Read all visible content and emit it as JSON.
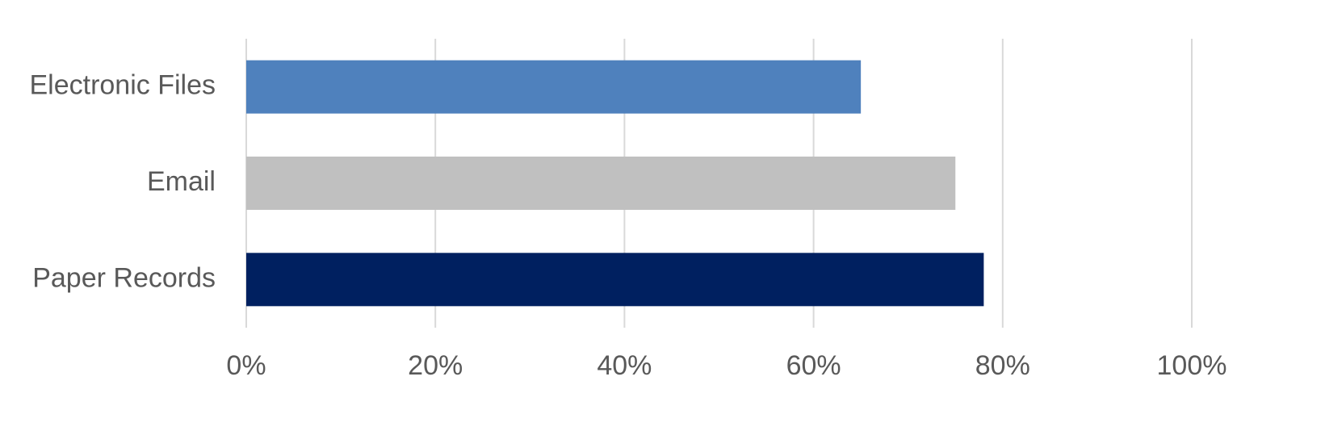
{
  "chart_data": {
    "type": "bar",
    "orientation": "horizontal",
    "categories": [
      "Electronic Files",
      "Email",
      "Paper Records"
    ],
    "values": [
      65,
      75,
      78
    ],
    "value_format": "percent",
    "xlim": [
      0,
      100
    ],
    "xticks": [
      0,
      20,
      40,
      60,
      80,
      100
    ],
    "xtick_labels": [
      "0%",
      "20%",
      "40%",
      "60%",
      "80%",
      "100%"
    ],
    "colors": [
      "#4f81bd",
      "#c0c0c0",
      "#002060"
    ],
    "grid": true,
    "legend": "none"
  }
}
